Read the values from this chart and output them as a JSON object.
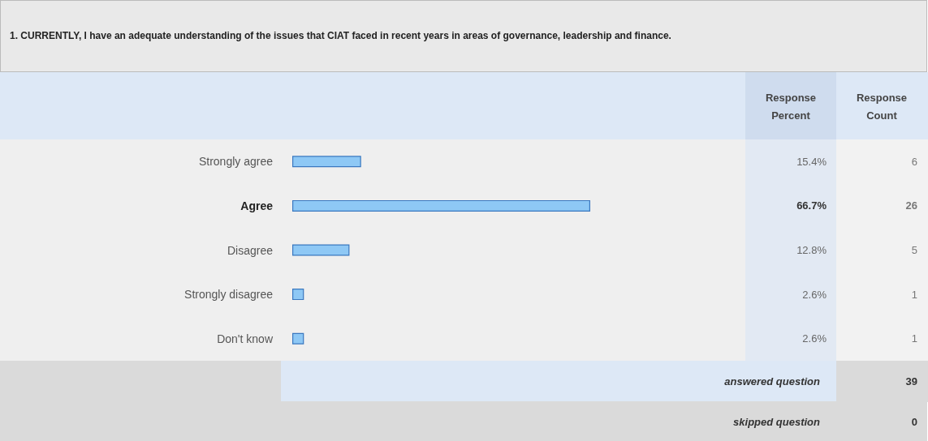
{
  "chart_data": {
    "type": "bar",
    "orientation": "horizontal",
    "title": "1. CURRENTLY, I have an adequate understanding of the issues that CIAT faced in recent years in areas of governance, leadership and finance.",
    "categories": [
      "Strongly agree",
      "Agree",
      "Disagree",
      "Strongly disagree",
      "Don't know"
    ],
    "values": [
      15.4,
      66.7,
      12.8,
      2.6,
      2.6
    ],
    "value_labels": [
      "15.4%",
      "66.7%",
      "12.8%",
      "2.6%",
      "2.6%"
    ],
    "color": "#8ec8f5",
    "tick_labels": "y",
    "grid": false,
    "annotations": [
      "Response Percent",
      "Response Count",
      "6",
      "26",
      "5",
      "1",
      "1",
      "answered question",
      "39",
      "skipped question",
      "0"
    ]
  }
}
